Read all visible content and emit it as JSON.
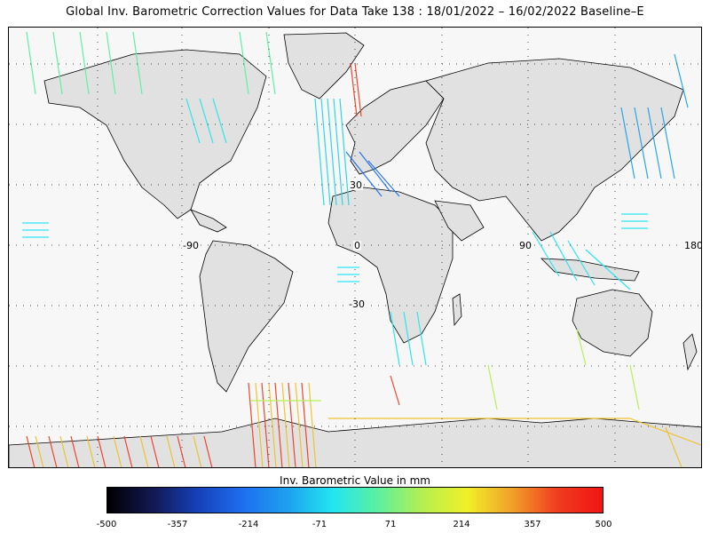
{
  "title": "Global Inv. Barometric Correction Values for Data Take 138 : 18/01/2022 – 16/02/2022 Baseline–E",
  "map": {
    "land_color": "#e1e1e1",
    "ocean_color": "#f7f7f7",
    "coast_color": "#000000",
    "latitude_labels": [
      "30",
      "0",
      "-30"
    ],
    "longitude_labels": [
      "-90",
      "0",
      "90",
      "180"
    ]
  },
  "colorbar": {
    "title": "Inv. Barometric Value in mm",
    "ticks": [
      "-500",
      "-357",
      "-214",
      "-71",
      "71",
      "214",
      "357",
      "500"
    ],
    "range": [
      -500,
      500
    ],
    "colors": [
      "#000000",
      "#121850",
      "#1640b8",
      "#1e6ef0",
      "#1ea0f0",
      "#22e6f0",
      "#5af0a0",
      "#b4f050",
      "#f0f028",
      "#f0a028",
      "#f03c1e",
      "#f01414"
    ]
  }
}
